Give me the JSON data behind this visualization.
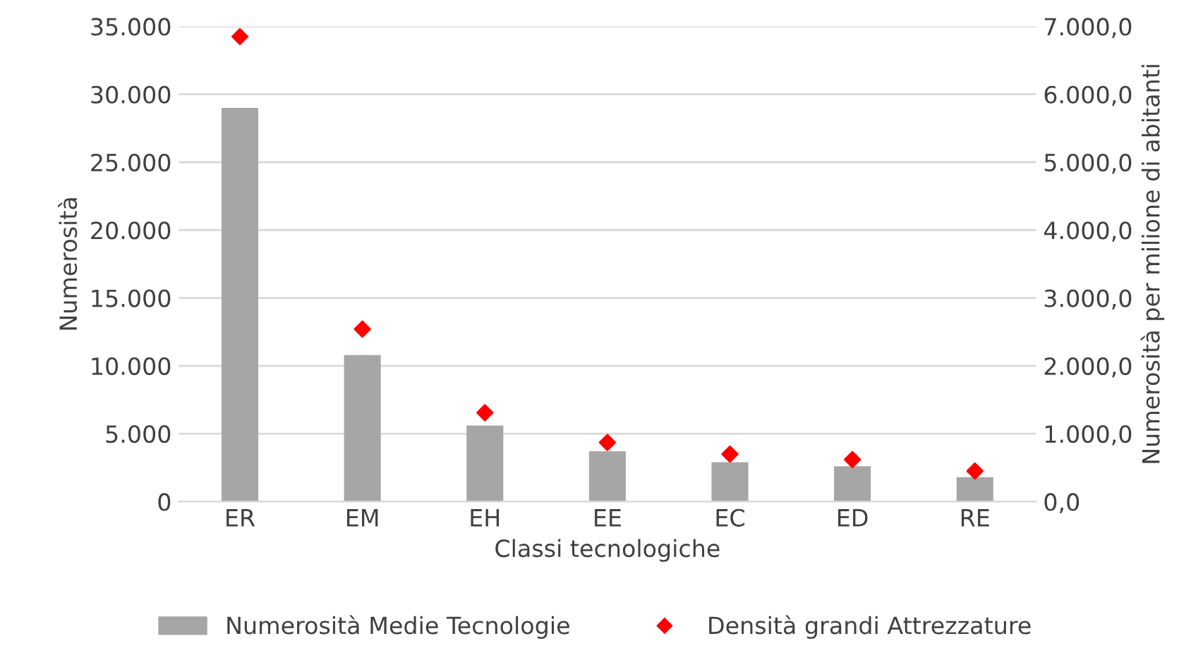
{
  "chart_data": {
    "type": "bar",
    "categories": [
      "ER",
      "EM",
      "EH",
      "EE",
      "EC",
      "ED",
      "RE"
    ],
    "xlabel": "Classi tecnologiche",
    "ylabel": "Numerosità",
    "y2label": "Numerosità per milione di abitanti",
    "series": [
      {
        "name": "Numerosità Medie Tecnologie",
        "color": "#a6a6a6",
        "values": [
          29000,
          10800,
          5600,
          3700,
          2900,
          2600,
          1800
        ]
      },
      {
        "name": "Densità grandi Attrezzature",
        "type": "scatter",
        "axis": "y2",
        "marker": "diamond",
        "color": "#ff0000",
        "values": [
          6850,
          2540,
          1310,
          870,
          700,
          620,
          450
        ]
      }
    ],
    "ylim": [
      0,
      35000
    ],
    "yticks": [
      0,
      {
        "value": 5000,
        "label": "5.000"
      },
      {
        "value": 10000,
        "label": "10.000"
      },
      {
        "value": 15000,
        "label": "15.000"
      },
      {
        "value": 20000,
        "label": "20.000"
      },
      {
        "value": 25000,
        "label": "25.000"
      },
      {
        "value": 30000,
        "label": "30.000"
      },
      {
        "value": 35000,
        "label": "35.000"
      }
    ],
    "y2lim": [
      0,
      7000
    ],
    "y2ticks": [
      {
        "value": 0,
        "label": "0,0"
      },
      {
        "value": 1000,
        "label": "1.000,0"
      },
      {
        "value": 2000,
        "label": "2.000,0"
      },
      {
        "value": 3000,
        "label": "3.000,0"
      },
      {
        "value": 4000,
        "label": "4.000,0"
      },
      {
        "value": 5000,
        "label": "5.000,0"
      },
      {
        "value": 6000,
        "label": "6.000,0"
      },
      {
        "value": 7000,
        "label": "7.000,0"
      }
    ],
    "grid": "y",
    "legend": "bottom"
  }
}
